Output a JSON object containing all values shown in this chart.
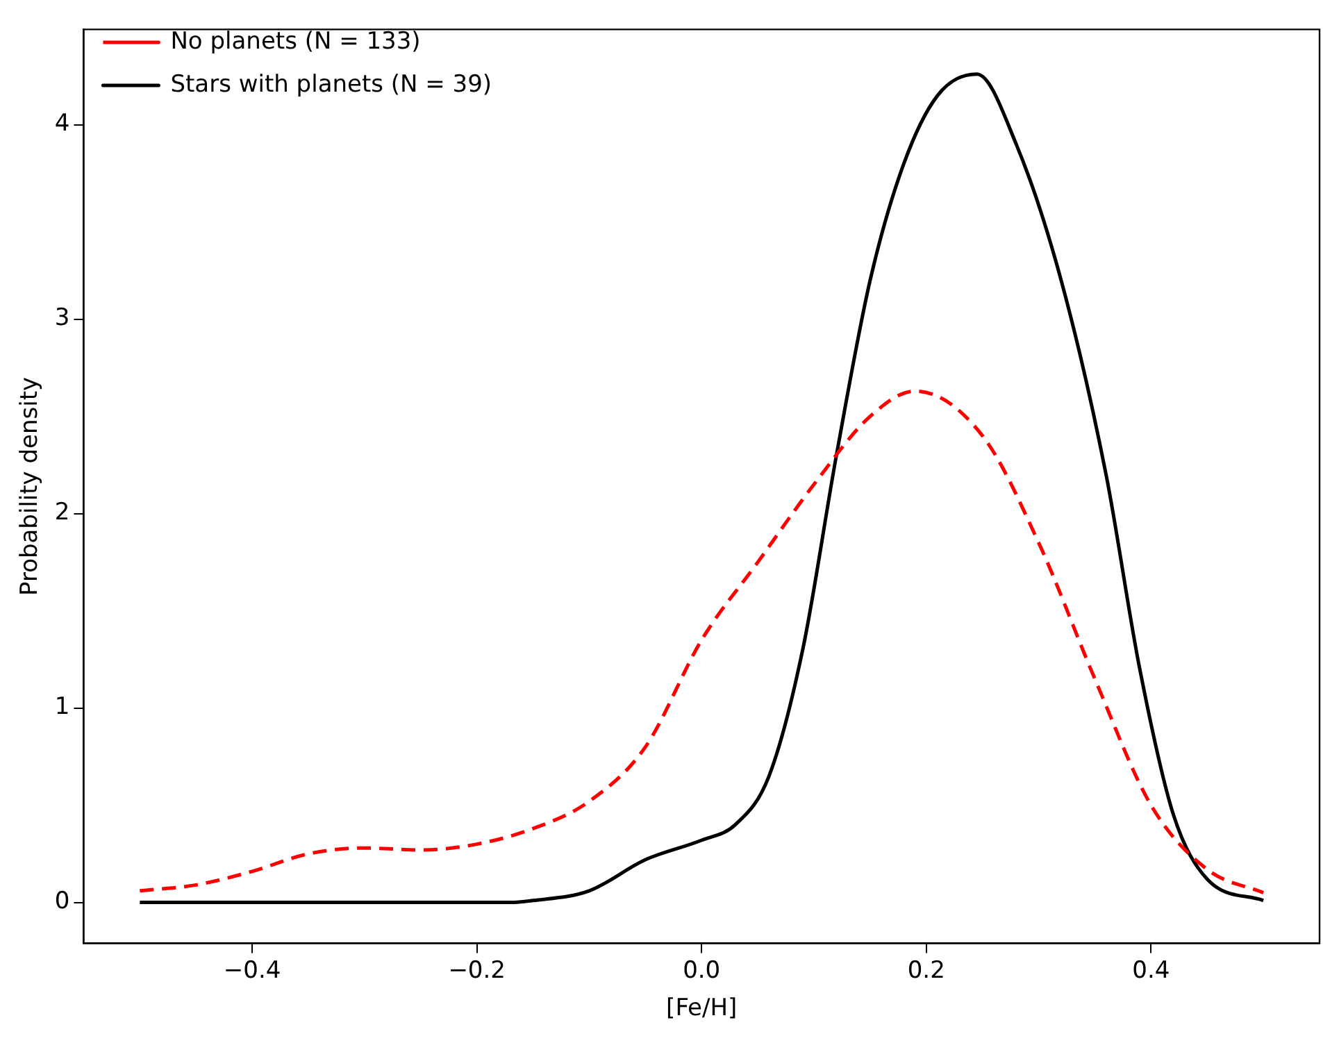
{
  "chart_data": {
    "type": "line",
    "xlabel": "[Fe/H]",
    "ylabel": "Probability density",
    "xlim": [
      -0.55,
      0.55
    ],
    "ylim": [
      -0.21,
      4.49
    ],
    "xticks": [
      {
        "value": -0.4,
        "label": "−0.4"
      },
      {
        "value": -0.2,
        "label": "−0.2"
      },
      {
        "value": 0,
        "label": "0.0"
      },
      {
        "value": 0.2,
        "label": "0.2"
      },
      {
        "value": 0.4,
        "label": "0.4"
      }
    ],
    "yticks": [
      0,
      1,
      2,
      3,
      4
    ],
    "grid": false,
    "legend": "top left",
    "marker": "none",
    "series": [
      {
        "name": "No planets (N = 133)",
        "color": "#ff0000",
        "line_style": "dashed",
        "x": [
          -0.5,
          -0.45,
          -0.4,
          -0.35,
          -0.3,
          -0.25,
          -0.2,
          -0.15,
          -0.1,
          -0.05,
          0,
          0.05,
          0.1,
          0.15,
          0.19,
          0.25,
          0.3,
          0.35,
          0.4,
          0.45,
          0.5
        ],
        "values": [
          0.06,
          0.09,
          0.16,
          0.25,
          0.28,
          0.27,
          0.3,
          0.38,
          0.52,
          0.8,
          1.35,
          1.75,
          2.15,
          2.5,
          2.63,
          2.4,
          1.85,
          1.15,
          0.5,
          0.17,
          0.05
        ]
      },
      {
        "name": "Stars with planets (N = 39)",
        "color": "#000000",
        "line_style": "solid",
        "x": [
          -0.5,
          -0.3,
          -0.17,
          -0.15,
          -0.1,
          -0.05,
          0,
          0.03,
          0.06,
          0.09,
          0.12,
          0.15,
          0.18,
          0.21,
          0.245,
          0.28,
          0.32,
          0.36,
          0.39,
          0.42,
          0.45,
          0.5
        ],
        "values": [
          0,
          0,
          0,
          0.01,
          0.06,
          0.22,
          0.32,
          0.4,
          0.65,
          1.3,
          2.3,
          3.2,
          3.8,
          4.15,
          4.26,
          3.9,
          3.2,
          2.2,
          1.2,
          0.45,
          0.12,
          0.01
        ]
      }
    ]
  }
}
